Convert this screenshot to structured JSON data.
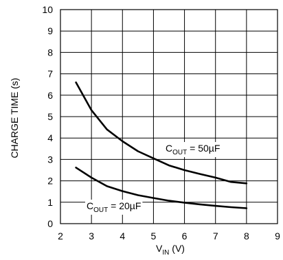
{
  "chart_data": {
    "type": "line",
    "xlabel": {
      "main": "V",
      "sub": "IN",
      "suffix": " (V)"
    },
    "ylabel": "CHARGE TIME (s)",
    "xlim": [
      2,
      9
    ],
    "ylim": [
      0,
      10
    ],
    "x_ticks": [
      "2",
      "3",
      "4",
      "5",
      "6",
      "7",
      "8",
      "9"
    ],
    "y_ticks": [
      "0",
      "1",
      "2",
      "3",
      "4",
      "5",
      "6",
      "7",
      "8",
      "9",
      "10"
    ],
    "grid": true,
    "series": [
      {
        "label": {
          "main": "C",
          "sub": "OUT",
          "suffix": " = 50µF"
        },
        "x": [
          2.5,
          3.0,
          3.5,
          4.0,
          4.5,
          5.0,
          5.5,
          6.0,
          6.5,
          7.0,
          7.5,
          8.0
        ],
        "y": [
          6.6,
          5.3,
          4.4,
          3.85,
          3.38,
          3.05,
          2.72,
          2.5,
          2.32,
          2.15,
          1.95,
          1.88
        ]
      },
      {
        "label": {
          "main": "C",
          "sub": "OUT",
          "suffix": " = 20µF"
        },
        "x": [
          2.5,
          3.0,
          3.5,
          4.0,
          4.5,
          5.0,
          5.5,
          6.0,
          6.5,
          7.0,
          7.5,
          8.0
        ],
        "y": [
          2.62,
          2.15,
          1.75,
          1.52,
          1.33,
          1.2,
          1.07,
          0.98,
          0.9,
          0.83,
          0.77,
          0.72
        ]
      }
    ]
  }
}
